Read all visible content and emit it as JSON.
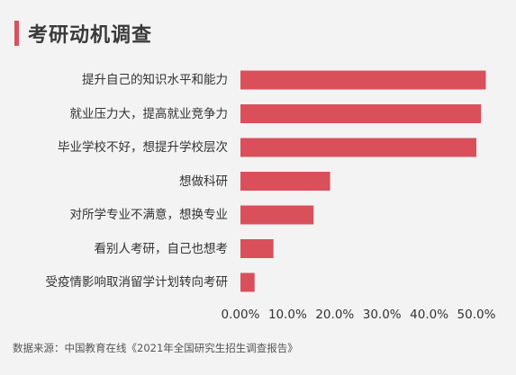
{
  "header": {
    "title": "考研动机调查",
    "accent_color": "#d9505b"
  },
  "chart_data": {
    "type": "bar",
    "orientation": "horizontal",
    "title": "考研动机调查",
    "categories": [
      "提升自己的知识水平和能力",
      "就业压力大，提高就业竞争力",
      "毕业学校不好，想提升学校层次",
      "想做科研",
      "对所学专业不满意，想换专业",
      "看别人考研，自己也想考",
      "受疫情影响取消留学计划转向考研"
    ],
    "values": [
      52.0,
      51.0,
      50.0,
      19.0,
      15.5,
      7.0,
      3.0
    ],
    "xlim": [
      0,
      50
    ],
    "x_ticks": [
      "0.00%",
      "10.0%",
      "20.0%",
      "30.0%",
      "40.0%",
      "50.0%"
    ],
    "bar_color": "#d9505b",
    "grid": false,
    "legend": "none"
  },
  "footer": {
    "source": "数据来源：中国教育在线《2021年全国研究生招生调查报告》"
  }
}
